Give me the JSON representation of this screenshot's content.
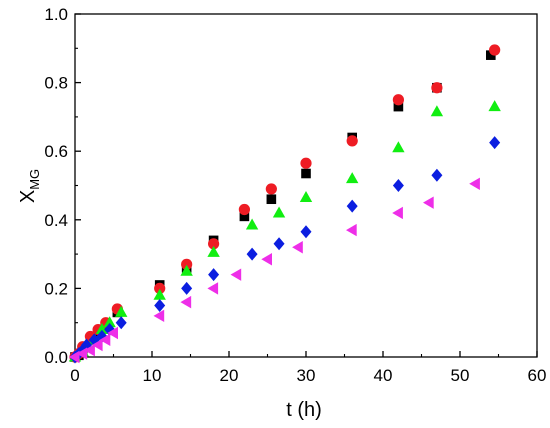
{
  "chart_data": {
    "type": "scatter",
    "xlabel": "t (h)",
    "ylabel": {
      "main": "X",
      "sub": "MG"
    },
    "xlim": [
      0,
      60
    ],
    "ylim": [
      0,
      1.0
    ],
    "xticks": [
      "0",
      "10",
      "20",
      "30",
      "40",
      "50",
      "60"
    ],
    "yticks": [
      "0.0",
      "0.2",
      "0.4",
      "0.6",
      "0.8",
      "1.0"
    ],
    "grid": false,
    "legend": "none",
    "series": [
      {
        "marker": "square",
        "color": "#000000",
        "points": [
          [
            0,
            0
          ],
          [
            0.5,
            0.005
          ],
          [
            1,
            0.02
          ],
          [
            2,
            0.05
          ],
          [
            3,
            0.07
          ],
          [
            4,
            0.09
          ],
          [
            5.5,
            0.13
          ],
          [
            11,
            0.21
          ],
          [
            14.5,
            0.26
          ],
          [
            18,
            0.34
          ],
          [
            22,
            0.41
          ],
          [
            25.5,
            0.46
          ],
          [
            30,
            0.535
          ],
          [
            36,
            0.64
          ],
          [
            42,
            0.73
          ],
          [
            47,
            0.785
          ],
          [
            54,
            0.88
          ]
        ]
      },
      {
        "marker": "circle",
        "color": "#ee1c24",
        "points": [
          [
            0,
            0
          ],
          [
            0.5,
            0.01
          ],
          [
            1,
            0.03
          ],
          [
            2,
            0.06
          ],
          [
            3,
            0.08
          ],
          [
            4,
            0.1
          ],
          [
            5.5,
            0.14
          ],
          [
            11,
            0.2
          ],
          [
            14.5,
            0.27
          ],
          [
            18,
            0.33
          ],
          [
            22,
            0.43
          ],
          [
            25.5,
            0.49
          ],
          [
            30,
            0.565
          ],
          [
            36,
            0.63
          ],
          [
            42,
            0.75
          ],
          [
            47,
            0.785
          ],
          [
            54.5,
            0.895
          ]
        ]
      },
      {
        "marker": "triangle-up",
        "color": "#11ee11",
        "points": [
          [
            0,
            0
          ],
          [
            1,
            0.015
          ],
          [
            1.5,
            0.03
          ],
          [
            2.5,
            0.05
          ],
          [
            3.5,
            0.08
          ],
          [
            4.5,
            0.1
          ],
          [
            6,
            0.13
          ],
          [
            11,
            0.18
          ],
          [
            14.5,
            0.25
          ],
          [
            18,
            0.305
          ],
          [
            23,
            0.385
          ],
          [
            26.5,
            0.42
          ],
          [
            30,
            0.465
          ],
          [
            36,
            0.52
          ],
          [
            42,
            0.61
          ],
          [
            47,
            0.715
          ],
          [
            54.5,
            0.73
          ]
        ]
      },
      {
        "marker": "diamond",
        "color": "#0b1ee0",
        "points": [
          [
            0,
            0
          ],
          [
            0.5,
            0.01
          ],
          [
            1,
            0.02
          ],
          [
            1.5,
            0.035
          ],
          [
            2.5,
            0.05
          ],
          [
            3.5,
            0.06
          ],
          [
            4.5,
            0.08
          ],
          [
            6,
            0.1
          ],
          [
            11,
            0.15
          ],
          [
            14.5,
            0.2
          ],
          [
            18,
            0.24
          ],
          [
            23,
            0.3
          ],
          [
            26.5,
            0.33
          ],
          [
            30,
            0.365
          ],
          [
            36,
            0.44
          ],
          [
            42,
            0.5
          ],
          [
            47,
            0.53
          ],
          [
            54.5,
            0.625
          ]
        ]
      },
      {
        "marker": "triangle-left",
        "color": "#ee2ee8",
        "points": [
          [
            0,
            0
          ],
          [
            1,
            0.01
          ],
          [
            2,
            0.02
          ],
          [
            3,
            0.035
          ],
          [
            4,
            0.05
          ],
          [
            5,
            0.07
          ],
          [
            11,
            0.12
          ],
          [
            14.5,
            0.16
          ],
          [
            18,
            0.2
          ],
          [
            21,
            0.24
          ],
          [
            25,
            0.285
          ],
          [
            29,
            0.32
          ],
          [
            36,
            0.37
          ],
          [
            42,
            0.42
          ],
          [
            46,
            0.45
          ],
          [
            52,
            0.505
          ]
        ]
      }
    ]
  }
}
